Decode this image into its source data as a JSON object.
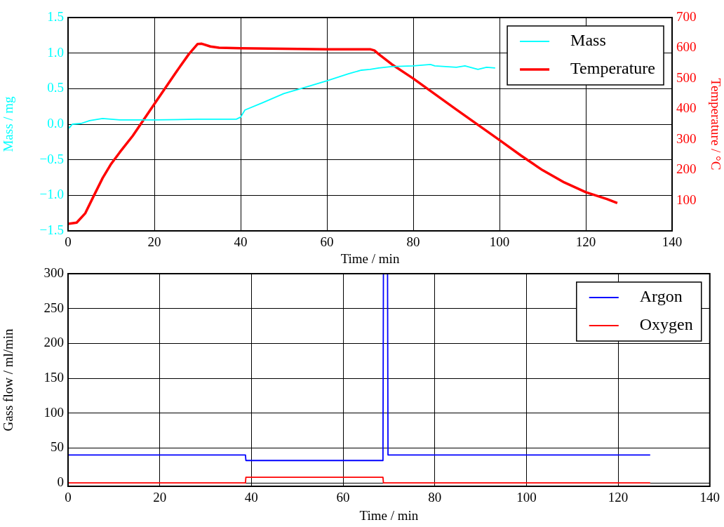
{
  "chart_data": [
    {
      "type": "line",
      "xlabel": "Time / min",
      "ylabel": "Mass / mg",
      "y2label": "Temperature / °C",
      "xlim": [
        0,
        140
      ],
      "xticks": [
        0,
        20,
        40,
        60,
        80,
        100,
        120,
        140
      ],
      "ylim": [
        -1.5,
        1.5
      ],
      "yticks": [
        {
          "value": -1.5,
          "label": "−1.5"
        },
        {
          "value": -1,
          "label": "−1.0"
        },
        {
          "value": -0.5,
          "label": "−0.5"
        },
        {
          "value": 0,
          "label": "0.0"
        },
        {
          "value": 0.5,
          "label": "0.5"
        },
        {
          "value": 1,
          "label": "1.0"
        },
        {
          "value": 1.5,
          "label": "1.5"
        }
      ],
      "y2lim": [
        0,
        700
      ],
      "y2ticks": [
        100,
        200,
        300,
        400,
        500,
        600,
        700
      ],
      "grid": true,
      "legend": "top right",
      "line_style": "solid",
      "series": [
        {
          "name": "Mass",
          "color": "#00ffff",
          "x": [
            0,
            0.3,
            1,
            3,
            5,
            8,
            12,
            20,
            30,
            39,
            40,
            41,
            45,
            50,
            55,
            60,
            65,
            68,
            70,
            72,
            75,
            80,
            84,
            85,
            90,
            92,
            95,
            97,
            99
          ],
          "values": [
            -0.03,
            -0.05,
            0,
            0.01,
            0.05,
            0.08,
            0.06,
            0.06,
            0.07,
            0.07,
            0.1,
            0.2,
            0.3,
            0.43,
            0.52,
            0.61,
            0.71,
            0.76,
            0.77,
            0.79,
            0.81,
            0.82,
            0.84,
            0.82,
            0.8,
            0.82,
            0.77,
            0.8,
            0.79
          ]
        },
        {
          "name": "Temperature",
          "color": "#ff0000",
          "axis": "y2",
          "x": [
            0,
            2,
            4,
            6,
            8,
            10,
            12,
            15,
            20,
            25,
            28,
            30,
            31,
            33,
            35,
            40,
            60,
            70,
            71,
            72,
            75,
            80,
            90,
            100,
            105,
            110,
            115,
            120,
            125,
            127.3
          ],
          "values": [
            23,
            27,
            58,
            116,
            173,
            220,
            258,
            312,
            416,
            520,
            580,
            613,
            614,
            605,
            601,
            599,
            596,
            596,
            592,
            580,
            547,
            500,
            398,
            298,
            247,
            199,
            159,
            127,
            104,
            91
          ]
        }
      ]
    },
    {
      "type": "line",
      "xlabel": "Time / min",
      "ylabel": "Gass flow / ml/min",
      "xlim": [
        0,
        140
      ],
      "xticks": [
        0,
        20,
        40,
        60,
        80,
        100,
        120,
        140
      ],
      "ylim": [
        -5,
        300
      ],
      "yticks": [
        0,
        50,
        100,
        150,
        200,
        250,
        300
      ],
      "grid": true,
      "legend": "top right",
      "line_style": "solid",
      "series": [
        {
          "name": "Argon",
          "color": "#0000ff",
          "x": [
            0,
            38.7,
            38.8,
            68.7,
            68.8,
            69.7,
            69.8,
            127
          ],
          "values": [
            40,
            40,
            32,
            32,
            300,
            300,
            40,
            40
          ]
        },
        {
          "name": "Oxygen",
          "color": "#ff0000",
          "x": [
            0,
            38.7,
            38.8,
            68.7,
            68.8,
            127
          ],
          "values": [
            0,
            0,
            8,
            8,
            0,
            0
          ]
        }
      ]
    }
  ]
}
